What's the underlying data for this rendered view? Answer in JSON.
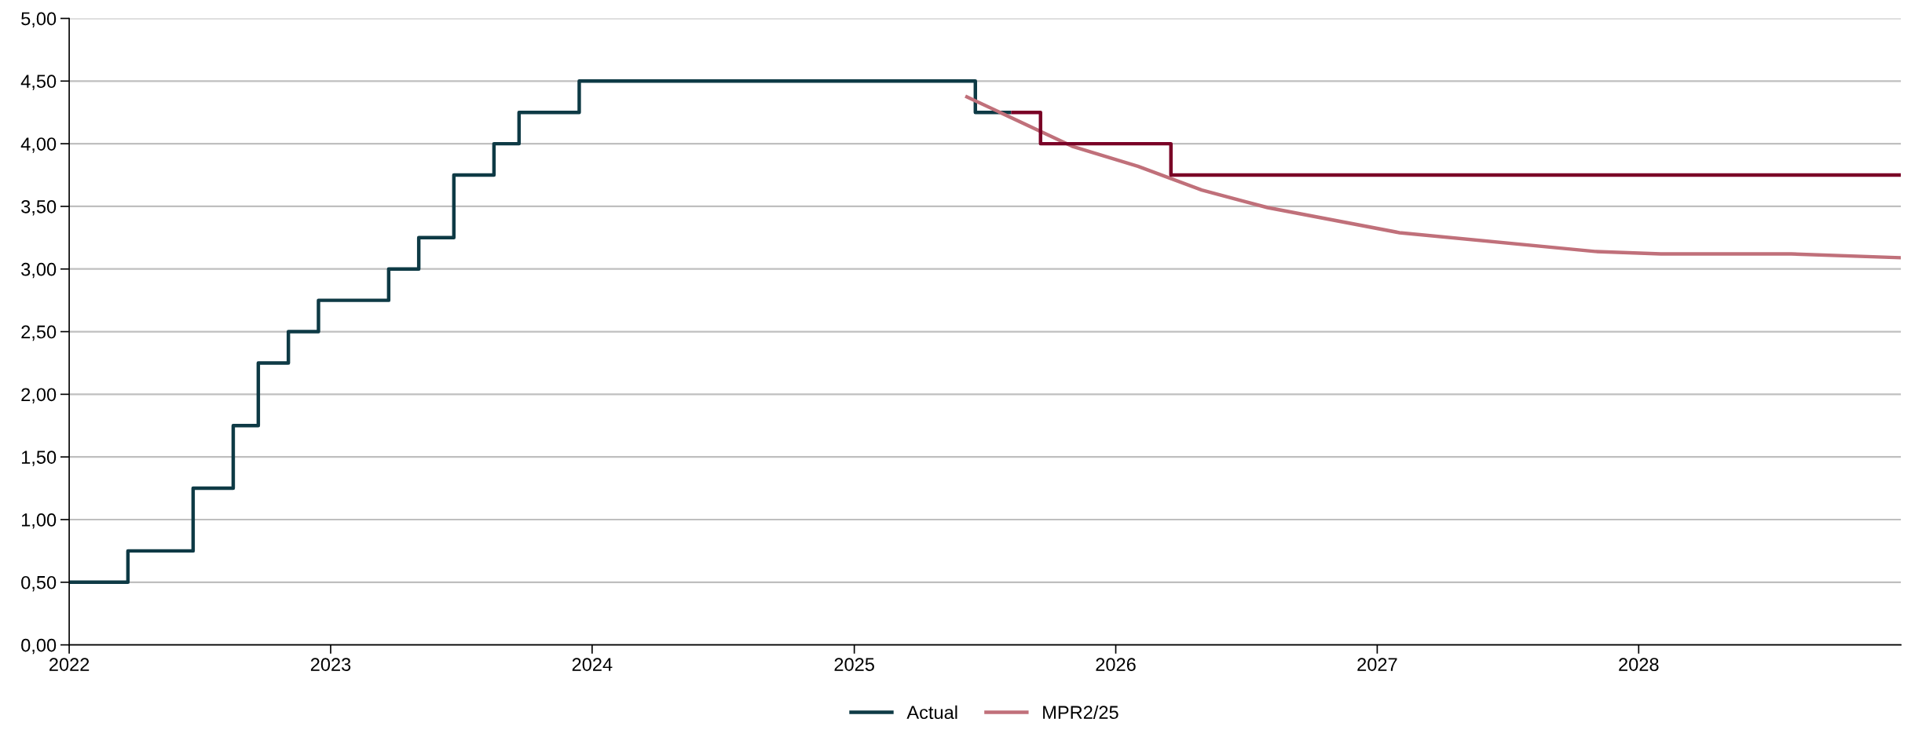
{
  "chart_data": {
    "type": "step",
    "xlim": [
      "2022-01-01",
      "2029-01-01"
    ],
    "xticks": [
      {
        "value": "2022-01-01",
        "label": "2022"
      },
      {
        "value": "2023-01-01",
        "label": "2023"
      },
      {
        "value": "2024-01-01",
        "label": "2024"
      },
      {
        "value": "2025-01-01",
        "label": "2025"
      },
      {
        "value": "2026-01-01",
        "label": "2026"
      },
      {
        "value": "2027-01-01",
        "label": "2027"
      },
      {
        "value": "2028-01-01",
        "label": "2028"
      }
    ],
    "ylim": [
      0,
      5
    ],
    "yticks": [
      {
        "value": 0,
        "label": "0,00"
      },
      {
        "value": 0.5,
        "label": "0,50"
      },
      {
        "value": 1,
        "label": "1,00"
      },
      {
        "value": 1.5,
        "label": "1,50"
      },
      {
        "value": 2,
        "label": "2,00"
      },
      {
        "value": 2.5,
        "label": "2,50"
      },
      {
        "value": 3,
        "label": "3,00"
      },
      {
        "value": 3.5,
        "label": "3,50"
      },
      {
        "value": 4,
        "label": "4,00"
      },
      {
        "value": 4.5,
        "label": "4,50"
      },
      {
        "value": 5,
        "label": "5,00"
      }
    ],
    "grid": "y",
    "legend": "bottom",
    "series": [
      {
        "name": "Actual",
        "color": "#0e3a45",
        "x": [
          "2022-01-01",
          "2022-03-24",
          "2022-06-23",
          "2022-08-18",
          "2022-09-22",
          "2022-11-03",
          "2022-12-15",
          "2023-03-23",
          "2023-05-04",
          "2023-06-22",
          "2023-08-17",
          "2023-09-21",
          "2023-12-14",
          "2025-06-19",
          "2025-08-08"
        ],
        "values": [
          0.5,
          0.75,
          1.25,
          1.75,
          2.25,
          2.5,
          2.75,
          3.0,
          3.25,
          3.75,
          4.0,
          4.25,
          4.5,
          4.25,
          4.25
        ]
      },
      {
        "name": "MPR2/25",
        "type": "line",
        "color": "#c0707a",
        "x": [
          "2025-06-05",
          "2025-11-01",
          "2026-02-01",
          "2026-05-01",
          "2026-08-01",
          "2027-02-01",
          "2027-11-01",
          "2028-02-01",
          "2028-08-01",
          "2029-01-01"
        ],
        "values": [
          4.38,
          3.98,
          3.82,
          3.63,
          3.49,
          3.29,
          3.14,
          3.12,
          3.12,
          3.09
        ]
      },
      {
        "color": "#7a0026",
        "x": [
          "2025-08-08",
          "2025-09-18",
          "2026-03-19",
          "2029-01-01"
        ],
        "values": [
          4.25,
          4.0,
          3.75,
          3.75
        ]
      }
    ]
  }
}
